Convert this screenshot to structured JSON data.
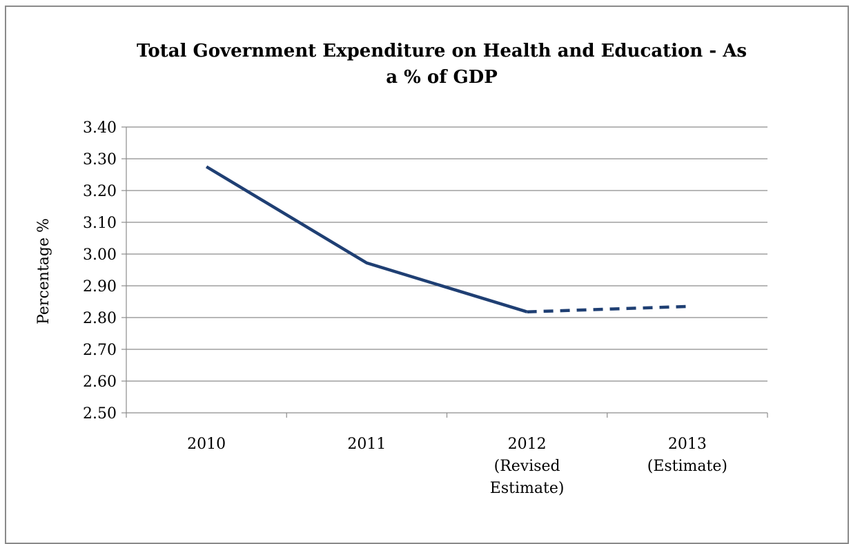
{
  "chart_data": {
    "type": "line",
    "title": "Total Government Expenditure on Health and Education -  As a % of GDP",
    "title_lines": [
      "Total Government Expenditure on Health and Education -  As",
      "a % of GDP"
    ],
    "xlabel": "",
    "ylabel": "Percentage %",
    "categories": [
      [
        "2010"
      ],
      [
        "2011"
      ],
      [
        "2012",
        "(Revised",
        "Estimate)"
      ],
      [
        "2013",
        "(Estimate)"
      ]
    ],
    "series": [
      {
        "values": [
          3.275,
          2.972,
          2.818,
          2.835
        ],
        "color": "#1f3f73",
        "dashed_from_index": 2
      }
    ],
    "ylim": [
      2.5,
      3.4
    ],
    "yticks": [
      "2.50",
      "2.60",
      "2.70",
      "2.80",
      "2.90",
      "3.00",
      "3.10",
      "3.20",
      "3.30",
      "3.40"
    ],
    "grid": true,
    "legend": "none"
  }
}
